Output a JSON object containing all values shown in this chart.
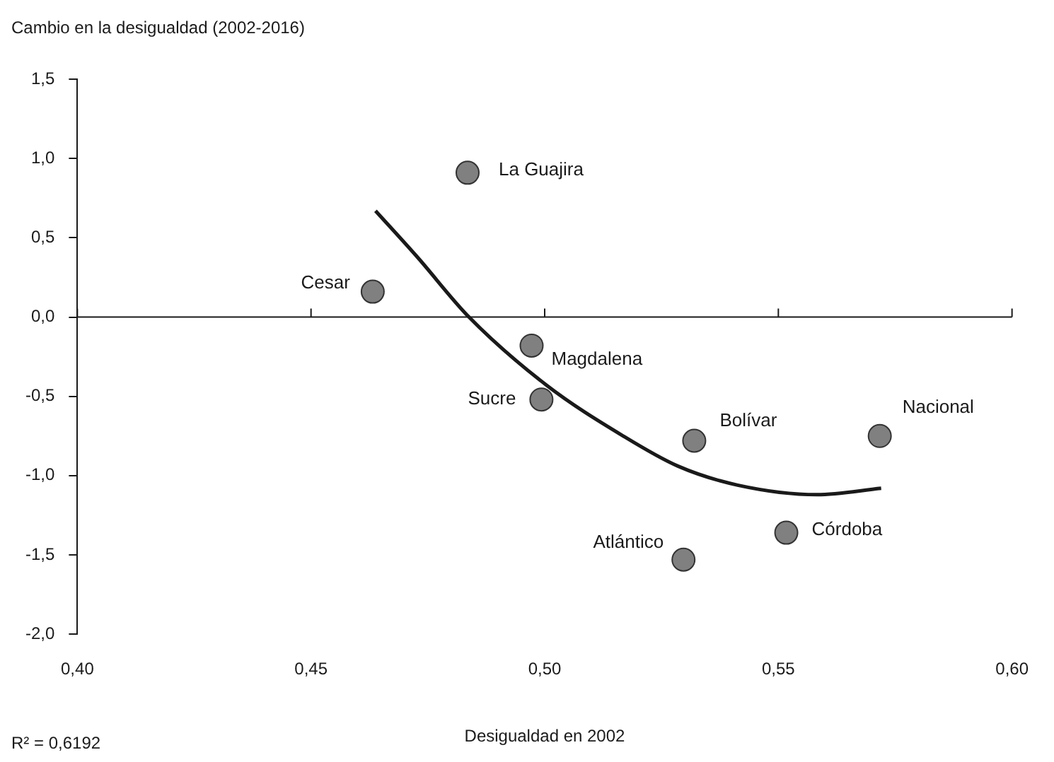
{
  "chart_data": {
    "type": "scatter",
    "xlabel": "Desigualdad en 2002",
    "ylabel": "Cambio en la desigualdad (2002-2016)",
    "xlim": [
      0.4,
      0.6
    ],
    "xticks": [
      {
        "value": 0.4,
        "label": "0,40"
      },
      {
        "value": 0.45,
        "label": "0,45"
      },
      {
        "value": 0.5,
        "label": "0,50"
      },
      {
        "value": 0.55,
        "label": "0,55"
      },
      {
        "value": 0.6,
        "label": "0,60"
      }
    ],
    "ylim": [
      -2.0,
      1.5
    ],
    "yticks": [
      {
        "value": -2.0,
        "label": "-2,0"
      },
      {
        "value": -1.5,
        "label": "-1,5"
      },
      {
        "value": -1.0,
        "label": "-1,0"
      },
      {
        "value": -0.5,
        "label": "-0,5"
      },
      {
        "value": 0,
        "label": "0,0"
      },
      {
        "value": 0.5,
        "label": "0,5"
      },
      {
        "value": 1.0,
        "label": "1,0"
      },
      {
        "value": 1.5,
        "label": "1,5"
      }
    ],
    "grid": false,
    "legend": false,
    "marker": "circle",
    "ref_lines": [
      {
        "axis": "y",
        "value": 0,
        "color": "#1a1a1a"
      }
    ],
    "annotations": [
      "R² = 0,6192"
    ],
    "series": [
      {
        "name": "La Guajira",
        "color": "#808080",
        "x": [
          0.4835
        ],
        "values": [
          0.91
        ]
      },
      {
        "name": "Cesar",
        "color": "#808080",
        "x": [
          0.4632
        ],
        "values": [
          0.16
        ]
      },
      {
        "name": "Magdalena",
        "color": "#808080",
        "x": [
          0.4972
        ],
        "values": [
          -0.18
        ]
      },
      {
        "name": "Sucre",
        "color": "#808080",
        "x": [
          0.4993
        ],
        "values": [
          -0.52
        ]
      },
      {
        "name": "Bolívar",
        "color": "#808080",
        "x": [
          0.532
        ],
        "values": [
          -0.78
        ]
      },
      {
        "name": "Nacional",
        "color": "#808080",
        "x": [
          0.5717
        ],
        "values": [
          -0.75
        ]
      },
      {
        "name": "Córdoba",
        "color": "#808080",
        "x": [
          0.5517
        ],
        "values": [
          -1.36
        ]
      },
      {
        "name": "Atlántico",
        "color": "#808080",
        "x": [
          0.5297
        ],
        "values": [
          -1.53
        ]
      },
      {
        "type": "line",
        "color": "#1a1a1a",
        "marker": "none",
        "line_style": "solid",
        "x": [
          0.4638,
          0.4727,
          0.4838,
          0.5004,
          0.5168,
          0.5285,
          0.5413,
          0.5583,
          0.572
        ],
        "values": [
          0.67,
          0.38,
          0,
          -0.43,
          -0.75,
          -0.94,
          -1.06,
          -1.12,
          -1.08
        ]
      }
    ]
  }
}
